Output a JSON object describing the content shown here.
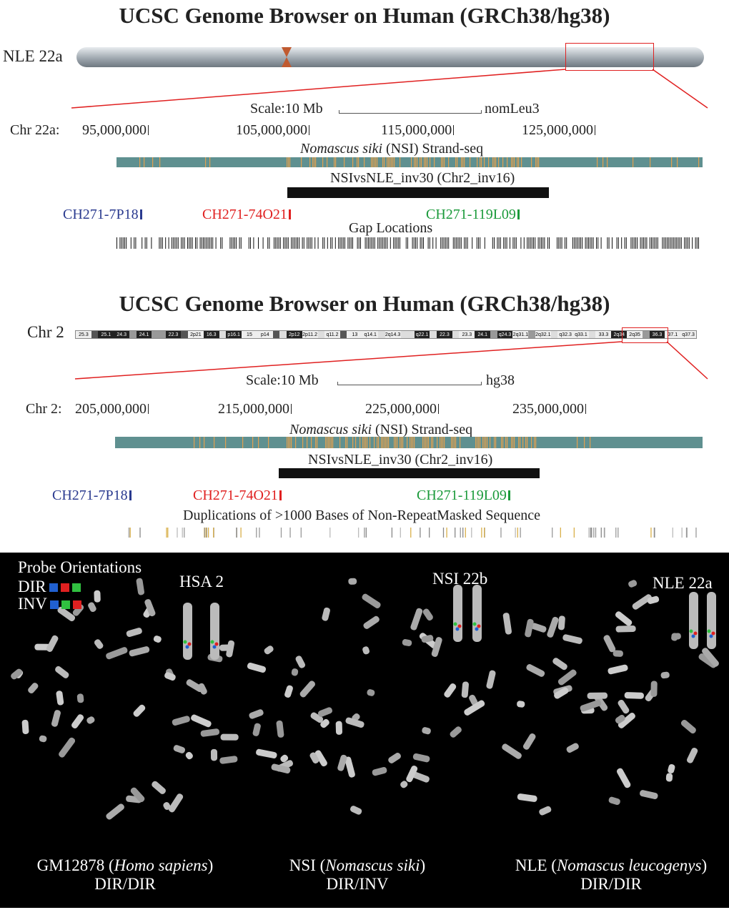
{
  "panel1": {
    "title": "UCSC Genome Browser on Human (GRCh38/hg38)",
    "chrom": "NLE 22a",
    "scale": "Scale:10 Mb",
    "assembly": "nomLeu3",
    "coord_label": "Chr 22a:",
    "coords": [
      "95,000,000",
      "105,000,000",
      "115,000,000",
      "125,000,000"
    ],
    "strand_label_italic": "Nomascus siki",
    "strand_label": " (NSI) Strand-seq",
    "inv_label": "NSIvsNLE_inv30 (Chr2_inv16)",
    "probes": [
      {
        "name": "CH271-7P18",
        "color": "#2a3a8f"
      },
      {
        "name": "CH271-74O21",
        "color": "#e02020"
      },
      {
        "name": "CH271-119L09",
        "color": "#1a9a3a"
      }
    ],
    "gap_label": "Gap Locations"
  },
  "panel2": {
    "title": "UCSC Genome Browser on Human (GRCh38/hg38)",
    "chrom": "Chr 2",
    "scale": "Scale:10 Mb",
    "assembly": "hg38",
    "coord_label": "Chr 2:",
    "coords": [
      "205,000,000",
      "215,000,000",
      "225,000,000",
      "235,000,000"
    ],
    "strand_label_italic": "Nomascus siki",
    "strand_label": " (NSI) Strand-seq",
    "inv_label": "NSIvsNLE_inv30 (Chr2_inv16)",
    "probes": [
      {
        "name": "CH271-7P18",
        "color": "#2a3a8f"
      },
      {
        "name": "CH271-74O21",
        "color": "#e02020"
      },
      {
        "name": "CH271-119L09",
        "color": "#1a9a3a"
      }
    ],
    "dup_label": "Duplications of >1000 Bases of Non-RepeatMasked Sequence",
    "bands": [
      "25.3",
      "",
      "25.1",
      "24.3",
      "",
      "24.1",
      "",
      "",
      "22.3",
      "",
      "2p21",
      "16.3",
      "",
      "p16.1",
      "15",
      "p14",
      "",
      "",
      "2p12",
      "2p11.2",
      "",
      "q11.2",
      "",
      "13",
      "q14.1",
      "",
      "2q14.3",
      "",
      "",
      "q22.1",
      "",
      "22.3",
      "",
      "23.3",
      "24.1",
      "",
      "q24.3",
      "2q31.1",
      "",
      "2q32.1",
      "",
      "q32.3",
      "q33.1",
      "",
      "33.3",
      "2q34",
      "2q35",
      "",
      "36.3",
      "37.1",
      "q37.3"
    ]
  },
  "fish": {
    "legend_title": "Probe Orientations",
    "legend": [
      {
        "label": "DIR",
        "colors": [
          "#2060d0",
          "#e02020",
          "#30c040"
        ]
      },
      {
        "label": "INV",
        "colors": [
          "#2060d0",
          "#30c040",
          "#e02020"
        ]
      }
    ],
    "labels": [
      "HSA 2",
      "NSI 22b",
      "NLE 22a"
    ],
    "samples": [
      {
        "pre": "GM12878 (",
        "ital": "Homo sapiens",
        "post": ")",
        "orient": "DIR/DIR"
      },
      {
        "pre": "NSI (",
        "ital": "Nomascus siki",
        "post": ")",
        "orient": "DIR/INV"
      },
      {
        "pre": "NLE (",
        "ital": "Nomascus leucogenys",
        "post": ")",
        "orient": "DIR/DIR"
      }
    ]
  },
  "colors": {
    "strand": "#5f9090",
    "strand_stripe": "#e0a050",
    "highlight": "#e02020"
  }
}
